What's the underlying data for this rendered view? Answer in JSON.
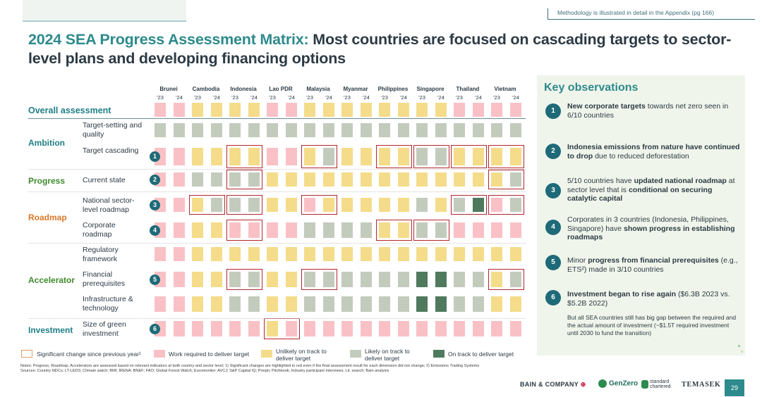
{
  "methodology_note": "Methodology is illustrated in detail in the Appendix (pg 166)",
  "title": {
    "highlight": "2024 SEA Progress Assessment Matrix:",
    "rest": " Most countries are focused on cascading targets to sector-level plans and developing financing options"
  },
  "countries": [
    "Brunei",
    "Cambodia",
    "Indonesia",
    "Lao PDR",
    "Malaysia",
    "Myanmar",
    "Philippines",
    "Singapore",
    "Thailand",
    "Vietnam"
  ],
  "year_labels": [
    "'23",
    "'24"
  ],
  "categories": {
    "overall": "Overall assessment",
    "ambition": "Ambition",
    "progress": "Progress",
    "roadmap": "Roadmap",
    "accelerator": "Accelerator",
    "investment": "Investment"
  },
  "indicators": [
    {
      "label": "Target-setting and quality",
      "num": ""
    },
    {
      "label": "Target cascading",
      "num": "1"
    },
    {
      "label": "Current state",
      "num": "2"
    },
    {
      "label": "National sector-level roadmap",
      "num": "3"
    },
    {
      "label": "Corporate roadmap",
      "num": "4"
    },
    {
      "label": "Regulatory framework",
      "num": ""
    },
    {
      "label": "Financial prerequisites",
      "num": "5"
    },
    {
      "label": "Infrastructure & technology",
      "num": ""
    },
    {
      "label": "Size of green investment",
      "num": "6"
    }
  ],
  "status_colors": {
    "P": "#f9c1c6",
    "Y": "#f4dc8a",
    "L": "#c3cbbd",
    "G": "#4f7a5e"
  },
  "matrix": [
    [
      "P",
      "P",
      "Y",
      "Y",
      "Y",
      "Y",
      "P",
      "P",
      "Y",
      "Y",
      "Y",
      "Y",
      "Y",
      "Y",
      "Y",
      "Y",
      "P",
      "P",
      "P",
      "P"
    ],
    [
      "L",
      "L",
      "L",
      "L",
      "L",
      "L",
      "L",
      "L",
      "L",
      "L",
      "L",
      "L",
      "L",
      "L",
      "L",
      "L",
      "L",
      "L",
      "L",
      "L"
    ],
    [
      "P",
      "P",
      "Y",
      "Y",
      "Y",
      "Y",
      "P",
      "P",
      "Y",
      "L",
      "Y",
      "Y",
      "Y",
      "Y",
      "L",
      "L",
      "Y",
      "Y",
      "Y",
      "Y"
    ],
    [
      "P",
      "P",
      "L",
      "L",
      "L",
      "L",
      "Y",
      "Y",
      "Y",
      "Y",
      "Y",
      "Y",
      "Y",
      "Y",
      "Y",
      "Y",
      "Y",
      "Y",
      "Y",
      "L"
    ],
    [
      "P",
      "P",
      "Y",
      "L",
      "L",
      "L",
      "Y",
      "Y",
      "P",
      "Y",
      "Y",
      "Y",
      "Y",
      "Y",
      "L",
      "Y",
      "L",
      "G",
      "P",
      "L"
    ],
    [
      "P",
      "P",
      "Y",
      "Y",
      "P",
      "P",
      "P",
      "P",
      "L",
      "L",
      "L",
      "L",
      "Y",
      "Y",
      "L",
      "L",
      "P",
      "P",
      "P",
      "P"
    ],
    [
      "P",
      "P",
      "Y",
      "Y",
      "Y",
      "Y",
      "Y",
      "Y",
      "Y",
      "Y",
      "Y",
      "Y",
      "Y",
      "Y",
      "Y",
      "Y",
      "Y",
      "Y",
      "Y",
      "Y"
    ],
    [
      "P",
      "P",
      "Y",
      "Y",
      "L",
      "L",
      "Y",
      "Y",
      "L",
      "L",
      "L",
      "L",
      "L",
      "L",
      "G",
      "G",
      "L",
      "L",
      "Y",
      "L"
    ],
    [
      "P",
      "P",
      "Y",
      "Y",
      "L",
      "L",
      "Y",
      "Y",
      "L",
      "L",
      "L",
      "L",
      "L",
      "L",
      "G",
      "G",
      "L",
      "L",
      "Y",
      "Y"
    ],
    [
      "P",
      "P",
      "P",
      "P",
      "P",
      "P",
      "Y",
      "P",
      "P",
      "P",
      "P",
      "P",
      "P",
      "P",
      "P",
      "P",
      "P",
      "P",
      "P",
      "P"
    ]
  ],
  "legend": {
    "significant_change": "Significant change since previous year¹",
    "work_required": "Work required to deliver target",
    "unlikely": "Unlikely on track to deliver target",
    "likely": "Likely on track to deliver target",
    "on_track": "On track to deliver target"
  },
  "notes": "Notes: Progress, Roadmap, Accelerators are assessed based on relevant indicators at both country and sector level; 1) Significant changes are highlighted in red even if the final assessment result for each dimension did not change; 2) Emissions Trading Systems",
  "sources": "Sources: Country NDCs; LT-LEDS; Climate watch; BMI; IRENA; BNEF; FAO; Global Forest Watch; Euromonitor; AVCJ; S&P Capital IQ; Preqin; Pitchbook; Industry participant interviews; Lit. search; Bain analysis",
  "key_observations": {
    "title": "Key observations",
    "items": [
      {
        "num": "1",
        "parts": [
          {
            "b": true,
            "t": "New corporate targets"
          },
          {
            "b": false,
            "t": " towards net zero seen in 6/10 countries"
          }
        ]
      },
      {
        "num": "2",
        "parts": [
          {
            "b": true,
            "t": "Indonesia emissions from nature have continued to drop"
          },
          {
            "b": false,
            "t": " due to reduced deforestation"
          }
        ]
      },
      {
        "num": "3",
        "parts": [
          {
            "b": false,
            "t": "5/10 countries have "
          },
          {
            "b": true,
            "t": "updated national roadmap"
          },
          {
            "b": false,
            "t": " at sector level that is "
          },
          {
            "b": true,
            "t": "conditional on securing catalytic capital"
          }
        ]
      },
      {
        "num": "4",
        "parts": [
          {
            "b": false,
            "t": "Corporates in 3 countries (Indonesia, Philippines, Singapore) have "
          },
          {
            "b": true,
            "t": "shown progress in establishing roadmaps"
          }
        ]
      },
      {
        "num": "5",
        "parts": [
          {
            "b": false,
            "t": "Minor "
          },
          {
            "b": true,
            "t": "progress from financial prerequisites"
          },
          {
            "b": false,
            "t": " (e.g., ETS²) made in 3/10 countries"
          }
        ]
      },
      {
        "num": "6",
        "parts": [
          {
            "b": true,
            "t": "Investment began to rise again"
          },
          {
            "b": false,
            "t": " ($6.3B 2023 vs. $5.2B 2022)"
          }
        ]
      }
    ],
    "sub_note": "But all SEA countries still has big gap between the required and the actual amount of investment (~$1.5T required investment until 2030 to fund the transition)"
  },
  "footer": {
    "bain": "BAIN & COMPANY",
    "genzero": "GenZero",
    "standard_chartered": "standard chartered",
    "temasek": "TEMASEK",
    "page": "29"
  }
}
